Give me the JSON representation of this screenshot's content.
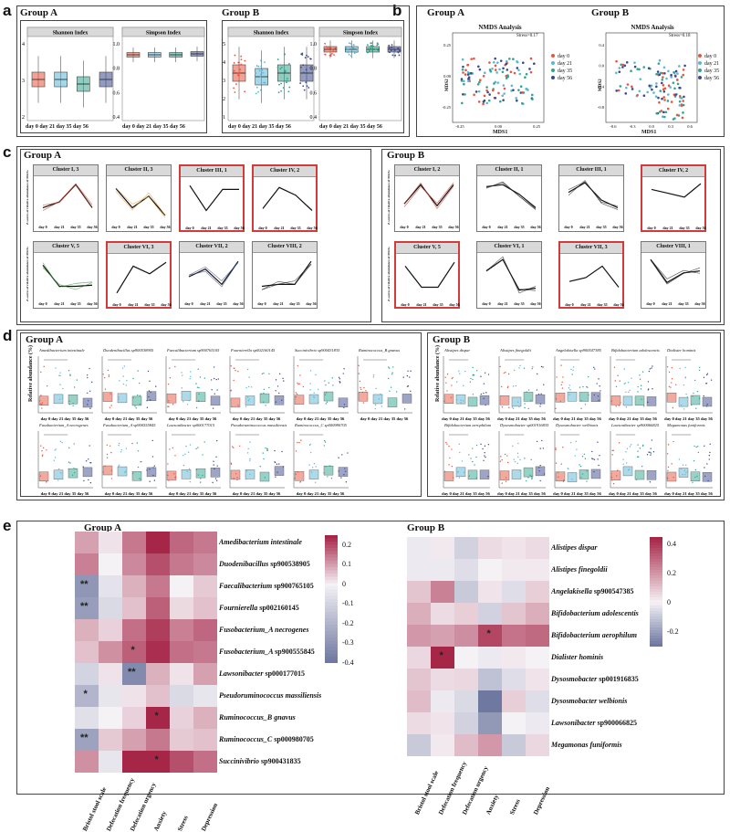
{
  "panels": {
    "a": "a",
    "b": "b",
    "c": "c",
    "d": "d",
    "e": "e"
  },
  "groups": {
    "a": "Group A",
    "b": "Group B"
  },
  "timepoints": [
    "day 0",
    "day 21",
    "day 35",
    "day 56"
  ],
  "colors": {
    "day0": "#e8553e",
    "day21": "#5cb6d6",
    "day35": "#2fa58d",
    "day56": "#3b4a8c",
    "red": "#d23b3b"
  },
  "panel_a": {
    "groupA": {
      "titles": [
        "Shannon Index",
        "Simpson Index"
      ],
      "shannon_ticks": [
        "4",
        "3",
        "2"
      ],
      "simpson_ticks": [
        "1.0",
        "0.8",
        "0.6",
        "0.4"
      ]
    },
    "groupB": {
      "titles": [
        "Shannon Index",
        "Simpson Index"
      ],
      "shannon_ticks": [
        "5",
        "4",
        "3",
        "2",
        "1"
      ],
      "simpson_ticks": [
        "1.0",
        "0.8",
        "0.6",
        "0.4"
      ]
    },
    "xaxis_text": "day 0 day 21 day 35 day 56"
  },
  "panel_b": {
    "title": "NMDS Analysis",
    "groupA": {
      "stress": "Stress=0.17",
      "xlabel": "MDS1",
      "ylabel": "MDS2",
      "xticks": [
        "-0.25",
        "0.00",
        "0.25"
      ],
      "yticks": [
        "0.25",
        "0.00",
        "-0.25"
      ]
    },
    "groupB": {
      "stress": "Stress=0.18",
      "xlabel": "MDS1",
      "ylabel": "MDS2",
      "xticks": [
        "-0.6",
        "-0.3",
        "0.0",
        "0.3",
        "0.6"
      ],
      "yticks": [
        "0.4",
        "0.0",
        "-0.4",
        "-0.8"
      ]
    },
    "legend": [
      "day 0",
      "day 21",
      "day 35",
      "day 56"
    ]
  },
  "panel_c": {
    "ylabel": "Z-scores of relative abundance of MGSs",
    "groupA": [
      "Cluster I, 3",
      "Cluster II, 3",
      "Cluster III, 1",
      "Cluster IV, 2",
      "Cluster V, 5",
      "Cluster VI, 3",
      "Cluster VII, 2",
      "Cluster VIII, 2"
    ],
    "groupB": [
      "Cluster I, 2",
      "Cluster II, 1",
      "Cluster III, 1",
      "Cluster IV, 2",
      "Cluster V, 5",
      "Cluster VI, 1",
      "Cluster VII, 3",
      "Cluster VIII, 1"
    ]
  },
  "panel_d": {
    "ylabel": "Relative abundance (%)",
    "groupA": [
      "Amedibacterium intestinale",
      "Duodenibacillus sp900538905",
      "Faecalibacterium sp900765105",
      "Fournierella sp002160145",
      "Succinivibrio sp900431835",
      "Ruminococcus_B gnavus",
      "Fusobacterium_A necrogenes",
      "Fusobacterium_A sp900555845",
      "Lawsonibacter sp000177015",
      "Pseudoruminococcus massiliensis",
      "Ruminococcus_C sp000980705"
    ],
    "groupB": [
      "Alistipes dispar",
      "Alistipes finegoldii",
      "Angelakisella sp900547385",
      "Bifidobacterium adolescentis",
      "Dialister hominis",
      "Bifidobacterium aerophilum",
      "Dysosmobacter sp001916835",
      "Dysosmobacter welbionis",
      "Lawsonibacter sp900066825",
      "Megamonas funiformis"
    ]
  },
  "panel_e": {
    "columns": [
      "Bristol stool scale",
      "Defecation frequency",
      "Defecation urgency",
      "Anxiety",
      "Stress",
      "Depression"
    ],
    "groupA": {
      "rows": [
        {
          "genus": "Amedibacterium",
          "species": "intestinale",
          "suffix": ""
        },
        {
          "genus": "Duodenibacillus",
          "species": "",
          "suffix": "sp900538905"
        },
        {
          "genus": "Faecalibacterium",
          "species": "",
          "suffix": "sp900765105"
        },
        {
          "genus": "Fournierella",
          "species": "",
          "suffix": "sp002160145"
        },
        {
          "genus": "Fusobacterium_A",
          "species": "necrogenes",
          "suffix": ""
        },
        {
          "genus": "Fusobacterium_A",
          "species": "",
          "suffix": "sp900555845"
        },
        {
          "genus": "Lawsonibacter",
          "species": "",
          "suffix": "sp000177015"
        },
        {
          "genus": "Pseudoruminococcus",
          "species": "massiliensis",
          "suffix": ""
        },
        {
          "genus": "Ruminococcus_B",
          "species": "gnavus",
          "suffix": ""
        },
        {
          "genus": "Ruminococcus_C",
          "species": "",
          "suffix": "sp000980705"
        },
        {
          "genus": "Succinivibrio",
          "species": "",
          "suffix": "sp900431835"
        }
      ],
      "values": [
        [
          0.1,
          0.02,
          0.15,
          0.25,
          0.17,
          0.15
        ],
        [
          0.14,
          0.0,
          0.13,
          0.2,
          0.15,
          0.13
        ],
        [
          -0.3,
          -0.05,
          0.08,
          0.15,
          0.0,
          0.05
        ],
        [
          -0.28,
          -0.08,
          0.06,
          0.18,
          0.03,
          0.06
        ],
        [
          0.08,
          0.04,
          0.16,
          0.22,
          0.14,
          0.17
        ],
        [
          0.06,
          0.12,
          0.18,
          0.24,
          0.16,
          0.15
        ],
        [
          -0.1,
          0.02,
          -0.34,
          0.08,
          0.02,
          0.1
        ],
        [
          -0.2,
          -0.04,
          0.02,
          0.06,
          -0.08,
          -0.04
        ],
        [
          -0.06,
          0.0,
          0.04,
          0.3,
          0.04,
          0.08
        ],
        [
          -0.26,
          0.05,
          0.1,
          0.15,
          0.05,
          0.06
        ],
        [
          0.12,
          -0.04,
          0.26,
          0.3,
          0.2,
          0.16
        ]
      ],
      "stars": [
        [
          "",
          ""
        ],
        [
          "",
          ""
        ],
        [
          "**"
        ],
        [
          "**"
        ],
        [
          ""
        ],
        [
          "",
          "",
          "*"
        ],
        [
          "",
          "",
          "**"
        ],
        [
          "*"
        ],
        [
          "",
          "",
          "",
          "*"
        ],
        [
          "**"
        ],
        [
          "",
          "",
          "",
          "*"
        ]
      ],
      "star_cells": [
        [
          2,
          0,
          "**"
        ],
        [
          3,
          0,
          "**"
        ],
        [
          5,
          2,
          "*"
        ],
        [
          6,
          2,
          "**"
        ],
        [
          7,
          0,
          "*"
        ],
        [
          8,
          3,
          "*"
        ],
        [
          9,
          0,
          "**"
        ],
        [
          10,
          3,
          "*"
        ]
      ],
      "colorbar_ticks": [
        "0.2",
        "0.1",
        "0",
        "-0.1",
        "-0.2",
        "-0.3",
        "-0.4"
      ],
      "range": [
        -0.4,
        0.25
      ]
    },
    "groupB": {
      "rows": [
        {
          "genus": "Alistipes",
          "species": "dispar",
          "suffix": ""
        },
        {
          "genus": "Alistipes",
          "species": "finegoldii",
          "suffix": ""
        },
        {
          "genus": "Angelakisella",
          "species": "",
          "suffix": "sp900547385"
        },
        {
          "genus": "Bifidobacterium",
          "species": "adolescentis",
          "suffix": ""
        },
        {
          "genus": "Bifidobacterium",
          "species": "aerophilum",
          "suffix": ""
        },
        {
          "genus": "Dialister",
          "species": "hominis",
          "suffix": ""
        },
        {
          "genus": "Dysosmobacter",
          "species": "",
          "suffix": "sp001916835"
        },
        {
          "genus": "Dysosmobacter",
          "species": "welbionis",
          "suffix": ""
        },
        {
          "genus": "Lawsonibacter",
          "species": "",
          "suffix": "sp900066825"
        },
        {
          "genus": "Megamonas",
          "species": "funiformis",
          "suffix": ""
        }
      ],
      "values": [
        [
          -0.02,
          0.02,
          -0.08,
          0.05,
          0.03,
          0.05
        ],
        [
          -0.02,
          -0.02,
          -0.05,
          0.0,
          0.02,
          0.02
        ],
        [
          0.1,
          0.25,
          -0.1,
          0.03,
          -0.05,
          0.08
        ],
        [
          0.15,
          0.05,
          0.08,
          -0.08,
          0.1,
          0.15
        ],
        [
          0.2,
          0.18,
          0.22,
          0.38,
          0.28,
          0.3
        ],
        [
          0.06,
          0.45,
          0.0,
          -0.02,
          0.02,
          0.0
        ],
        [
          0.1,
          0.05,
          0.06,
          -0.12,
          -0.05,
          0.03
        ],
        [
          0.12,
          -0.02,
          -0.06,
          -0.3,
          0.08,
          -0.05
        ],
        [
          0.05,
          0.03,
          -0.08,
          -0.22,
          0.0,
          -0.02
        ],
        [
          -0.1,
          0.02,
          0.12,
          0.2,
          -0.1,
          0.06
        ]
      ],
      "star_cells": [
        [
          4,
          3,
          "*"
        ],
        [
          5,
          1,
          "*"
        ]
      ],
      "colorbar_ticks": [
        "0.4",
        "0.2",
        "0",
        "-0.2"
      ],
      "range": [
        -0.3,
        0.45
      ]
    }
  }
}
